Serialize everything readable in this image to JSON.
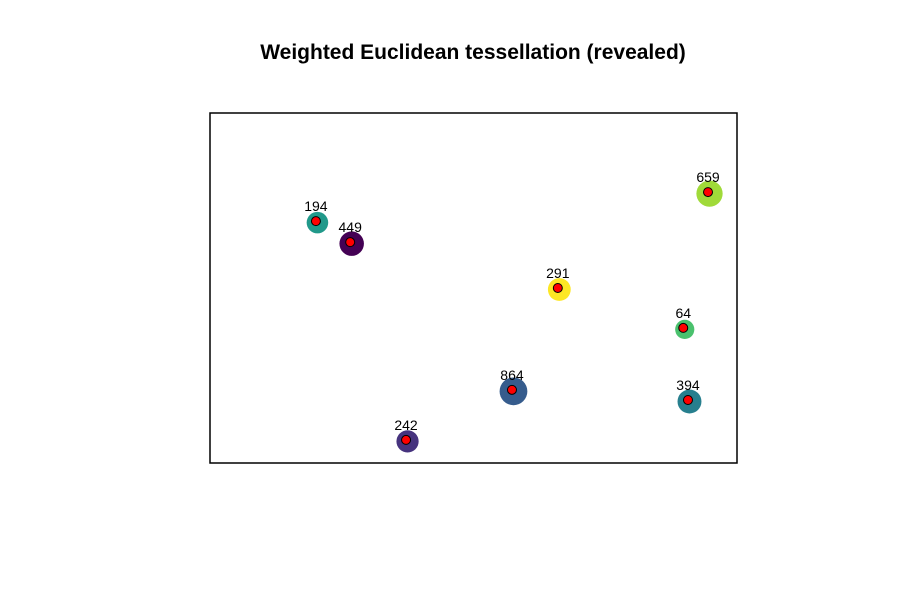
{
  "chart_data": {
    "type": "scatter",
    "title": "Weighted Euclidean tessellation (revealed)",
    "xlabel": "",
    "ylabel": "",
    "xlim": [
      0,
      100
    ],
    "ylim": [
      0,
      100
    ],
    "axes_shown": false,
    "grid": false,
    "point_color": "#ff0000",
    "points": [
      {
        "label": "194",
        "x": 20.1,
        "y": 69.1,
        "weight": 194,
        "color": "#21998a"
      },
      {
        "label": "449",
        "x": 26.6,
        "y": 63.1,
        "weight": 449,
        "color": "#440154"
      },
      {
        "label": "659",
        "x": 94.5,
        "y": 77.4,
        "weight": 659,
        "color": "#a0da39"
      },
      {
        "label": "291",
        "x": 66.0,
        "y": 50.0,
        "weight": 291,
        "color": "#fde725"
      },
      {
        "label": "64",
        "x": 89.8,
        "y": 38.6,
        "weight": 64,
        "color": "#4ac16d"
      },
      {
        "label": "864",
        "x": 57.3,
        "y": 20.9,
        "weight": 864,
        "color": "#365c8d"
      },
      {
        "label": "394",
        "x": 90.7,
        "y": 18.0,
        "weight": 394,
        "color": "#277f8e"
      },
      {
        "label": "242",
        "x": 37.2,
        "y": 6.6,
        "weight": 242,
        "color": "#46337e"
      }
    ]
  }
}
